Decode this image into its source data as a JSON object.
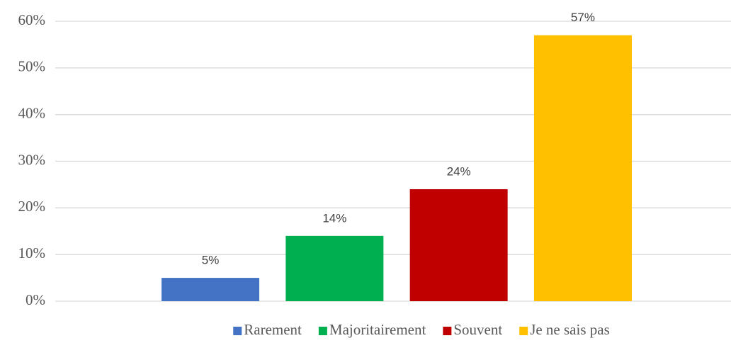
{
  "chart_data": {
    "type": "bar",
    "categories": [
      null
    ],
    "series": [
      {
        "name": "Rarement",
        "color": "#4472c4",
        "values": [
          5
        ],
        "value_labels": [
          "5%"
        ]
      },
      {
        "name": "Majoritairement",
        "color": "#00b050",
        "values": [
          14
        ],
        "value_labels": [
          "14%"
        ]
      },
      {
        "name": "Souvent",
        "color": "#c00000",
        "values": [
          24
        ],
        "value_labels": [
          "24%"
        ]
      },
      {
        "name": "Je ne sais pas",
        "color": "#ffc000",
        "values": [
          57
        ],
        "value_labels": [
          "57%"
        ]
      }
    ],
    "ylim": [
      0,
      60
    ],
    "yticks": [
      {
        "value": 0,
        "label": "0%"
      },
      {
        "value": 10,
        "label": "10%"
      },
      {
        "value": 20,
        "label": "20%"
      },
      {
        "value": 30,
        "label": "30%"
      },
      {
        "value": 40,
        "label": "40%"
      },
      {
        "value": 50,
        "label": "50%"
      },
      {
        "value": 60,
        "label": "60%"
      }
    ],
    "grid": true,
    "legend": "bottom"
  }
}
